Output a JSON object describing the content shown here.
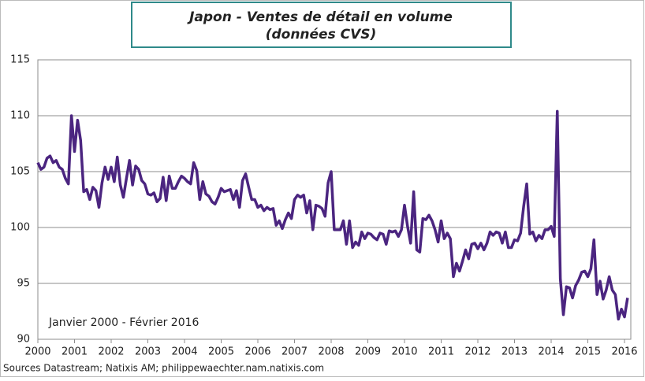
{
  "chart_data": {
    "type": "line",
    "title": "Japon - Ventes de détail en volume",
    "subtitle": "(données CVS)",
    "annotation": "Janvier 2000 - Février 2016",
    "source": "Sources  Datastream; Natixis AM; philippewaechter.nam.natixis.com",
    "categories": [
      "2000",
      null,
      null,
      null,
      null,
      null,
      null,
      null,
      null,
      null,
      null,
      null,
      "2001",
      null,
      null,
      null,
      null,
      null,
      null,
      null,
      null,
      null,
      null,
      null,
      "2002",
      null,
      null,
      null,
      null,
      null,
      null,
      null,
      null,
      null,
      null,
      null,
      "2003",
      null,
      null,
      null,
      null,
      null,
      null,
      null,
      null,
      null,
      null,
      null,
      "2004",
      null,
      null,
      null,
      null,
      null,
      null,
      null,
      null,
      null,
      null,
      null,
      "2005",
      null,
      null,
      null,
      null,
      null,
      null,
      null,
      null,
      null,
      null,
      null,
      "2006",
      null,
      null,
      null,
      null,
      null,
      null,
      null,
      null,
      null,
      null,
      null,
      "2007",
      null,
      null,
      null,
      null,
      null,
      null,
      null,
      null,
      null,
      null,
      null,
      "2008",
      null,
      null,
      null,
      null,
      null,
      null,
      null,
      null,
      null,
      null,
      null,
      "2009",
      null,
      null,
      null,
      null,
      null,
      null,
      null,
      null,
      null,
      null,
      null,
      "2010",
      null,
      null,
      null,
      null,
      null,
      null,
      null,
      null,
      null,
      null,
      null,
      "2011",
      null,
      null,
      null,
      null,
      null,
      null,
      null,
      null,
      null,
      null,
      null,
      "2012",
      null,
      null,
      null,
      null,
      null,
      null,
      null,
      null,
      null,
      null,
      null,
      "2013",
      null,
      null,
      null,
      null,
      null,
      null,
      null,
      null,
      null,
      null,
      null,
      "2014",
      null,
      null,
      null,
      null,
      null,
      null,
      null,
      null,
      null,
      null,
      null,
      "2015",
      null,
      null,
      null,
      null,
      null,
      null,
      null,
      null,
      null,
      null,
      null,
      "2016",
      null
    ],
    "series": [
      {
        "color": "#4b2580",
        "values": [
          105.8,
          105.2,
          105.4,
          106.2,
          106.4,
          105.8,
          106.0,
          105.4,
          105.2,
          104.4,
          103.9,
          110.0,
          106.8,
          109.6,
          107.8,
          103.2,
          103.4,
          102.5,
          103.6,
          103.3,
          101.8,
          104.0,
          105.4,
          104.3,
          105.4,
          104.1,
          106.3,
          103.8,
          102.7,
          104.4,
          106.0,
          103.8,
          105.5,
          105.2,
          104.2,
          103.9,
          103.0,
          102.9,
          103.1,
          102.3,
          102.6,
          104.5,
          102.4,
          104.6,
          103.5,
          103.5,
          104.1,
          104.6,
          104.4,
          104.1,
          103.9,
          105.8,
          105.1,
          102.5,
          104.1,
          103.0,
          102.8,
          102.3,
          102.1,
          102.7,
          103.5,
          103.2,
          103.3,
          103.4,
          102.5,
          103.3,
          101.8,
          104.2,
          104.8,
          103.6,
          102.5,
          102.5,
          101.8,
          102.0,
          101.5,
          101.8,
          101.6,
          101.7,
          100.2,
          100.6,
          99.9,
          100.7,
          101.3,
          100.8,
          102.5,
          102.9,
          102.7,
          102.9,
          101.3,
          102.4,
          99.8,
          102.0,
          101.9,
          101.7,
          101.0,
          104.0,
          105.0,
          99.8,
          99.8,
          99.8,
          100.6,
          98.5,
          100.6,
          98.2,
          98.7,
          98.4,
          99.6,
          99.0,
          99.5,
          99.4,
          99.1,
          98.9,
          99.5,
          99.4,
          98.5,
          99.7,
          99.6,
          99.7,
          99.2,
          99.8,
          102.0,
          100.1,
          98.6,
          103.2,
          98.0,
          97.8,
          100.8,
          100.7,
          101.1,
          100.6,
          99.8,
          98.7,
          100.6,
          99.0,
          99.5,
          99.0,
          95.6,
          96.8,
          96.1,
          97.0,
          98.0,
          97.2,
          98.5,
          98.6,
          98.1,
          98.6,
          98.0,
          98.6,
          99.6,
          99.3,
          99.6,
          99.5,
          98.6,
          99.6,
          98.2,
          98.2,
          98.9,
          98.8,
          99.5,
          101.9,
          103.9,
          99.4,
          99.6,
          98.8,
          99.3,
          99.0,
          99.8,
          99.8,
          100.1,
          99.2,
          110.4,
          95.4,
          92.2,
          94.7,
          94.6,
          93.7,
          94.8,
          95.3,
          96.0,
          96.1,
          95.6,
          96.3,
          98.9,
          94.0,
          95.2,
          93.6,
          94.4,
          95.6,
          94.4,
          94.0,
          91.8,
          92.7,
          92.0,
          93.7
        ]
      }
    ],
    "ylim": [
      90,
      115
    ],
    "yticks": [
      90,
      95,
      100,
      105,
      110,
      115
    ],
    "grid": true
  }
}
